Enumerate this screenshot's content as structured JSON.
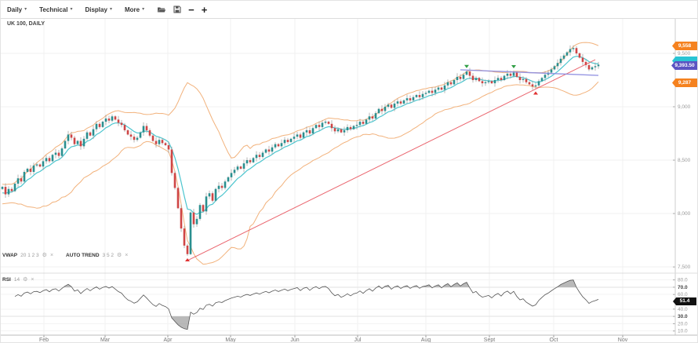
{
  "icons": {
    "caret": "▾",
    "gear": "⚙",
    "close": "×",
    "minus": "−",
    "plus": "+"
  },
  "toolbar": {
    "menus": [
      {
        "label": "Daily"
      },
      {
        "label": "Technical"
      },
      {
        "label": "Display"
      },
      {
        "label": "More"
      }
    ]
  },
  "symbol_label": "UK 100, DAILY",
  "indicators": {
    "vwap": {
      "name": "VWAP",
      "params": "20 1 2 3"
    },
    "auto_trend": {
      "name": "AUTO TREND",
      "params": "3 5 2"
    },
    "rsi": {
      "name": "RSI",
      "params": "14"
    }
  },
  "badges": {
    "upper_band": {
      "text": "9,558",
      "color": "#f5821f"
    },
    "ma": {
      "text": "",
      "color": "#29c4d4"
    },
    "price": {
      "text": "9,393.50",
      "color": "#5b54c2"
    },
    "lower_band": {
      "text": "9,287",
      "color": "#f5821f"
    },
    "rsi": {
      "text": "51.4",
      "color": "#111111"
    }
  },
  "chart_data": {
    "type": "candlestick",
    "symbol": "UK 100",
    "timeframe": "DAILY",
    "x_axis_months": [
      "Feb",
      "Mar",
      "Apr",
      "May",
      "Jun",
      "Jul",
      "Aug",
      "Sept",
      "Oct",
      "Nov"
    ],
    "price_ticks": [
      9500,
      9000,
      8500,
      8000,
      7500
    ],
    "rsi_ticks": [
      80,
      70,
      60,
      40,
      30,
      20,
      10
    ],
    "rsi_bold_ticks": [
      70,
      30
    ],
    "rsi_last_value": 51.4,
    "open_first": 8230,
    "pre_window_closes": [
      8150,
      8230,
      8180,
      8100,
      8200,
      8170,
      8120,
      8240,
      8210,
      8160
    ],
    "closes": [
      8250,
      8180,
      8230,
      8210,
      8280,
      8330,
      8300,
      8390,
      8420,
      8390,
      8450,
      8460,
      8440,
      8490,
      8520,
      8490,
      8550,
      8570,
      8540,
      8610,
      8680,
      8740,
      8710,
      8650,
      8680,
      8630,
      8700,
      8760,
      8730,
      8790,
      8840,
      8810,
      8860,
      8890,
      8870,
      8910,
      8880,
      8850,
      8830,
      8780,
      8740,
      8720,
      8690,
      8710,
      8760,
      8820,
      8780,
      8730,
      8680,
      8650,
      8690,
      8660,
      8640,
      8600,
      8380,
      8240,
      8050,
      7860,
      7700,
      7620,
      8010,
      7900,
      7950,
      8080,
      8020,
      8160,
      8190,
      8120,
      8230,
      8260,
      8240,
      8300,
      8340,
      8380,
      8410,
      8440,
      8420,
      8470,
      8500,
      8480,
      8520,
      8550,
      8530,
      8570,
      8600,
      8580,
      8620,
      8650,
      8630,
      8660,
      8690,
      8670,
      8700,
      8720,
      8740,
      8710,
      8760,
      8780,
      8750,
      8800,
      8830,
      8810,
      8850,
      8860,
      8840,
      8800,
      8770,
      8790,
      8760,
      8780,
      8810,
      8790,
      8820,
      8830,
      8860,
      8840,
      8880,
      8910,
      8890,
      8940,
      8980,
      8960,
      9000,
      9020,
      8990,
      9030,
      9050,
      9030,
      9060,
      9080,
      9060,
      9090,
      9110,
      9090,
      9120,
      9130,
      9150,
      9130,
      9160,
      9180,
      9160,
      9200,
      9230,
      9210,
      9250,
      9280,
      9260,
      9300,
      9330,
      9290,
      9250,
      9270,
      9240,
      9220,
      9230,
      9240,
      9220,
      9250,
      9270,
      9250,
      9290,
      9310,
      9290,
      9320,
      9280,
      9250,
      9260,
      9230,
      9210,
      9190,
      9200,
      9240,
      9270,
      9300,
      9320,
      9350,
      9380,
      9410,
      9450,
      9480,
      9510,
      9540,
      9550,
      9500,
      9460,
      9420,
      9390,
      9350,
      9370,
      9380,
      9394
    ],
    "overlays": {
      "bollinger": {
        "period": 20,
        "stdev_mult": 2,
        "color": "#f2b27c",
        "upper_value_label": "9,558",
        "lower_value_label": "9,287"
      },
      "vwap_line": {
        "period": 8,
        "color": "#4cc5ce"
      },
      "trend_lines": [
        {
          "name": "auto-trend-support",
          "color": "#e8555f",
          "x1_index": 59,
          "price1": 7560,
          "x2_index": 189,
          "price2": 9441,
          "width": 1
        },
        {
          "name": "auto-trend-resistance",
          "color": "#8c8ce0",
          "x1_index": 146,
          "price1": 9346,
          "x2_index": 190,
          "price2": 9294,
          "width": 1.4
        }
      ]
    },
    "markers": [
      {
        "index": 59,
        "direction": "up",
        "color": "#e03131"
      },
      {
        "index": 148,
        "direction": "down",
        "color": "#2f9e44"
      },
      {
        "index": 163,
        "direction": "down",
        "color": "#2f9e44"
      },
      {
        "index": 170,
        "direction": "up",
        "color": "#e03131"
      }
    ],
    "current_price_label": "9,393.50",
    "candle_up_color": "#2a8f8f",
    "candle_down_color": "#cf4545",
    "wick_color": "#999999",
    "rsi_line_color": "#555555",
    "rsi_zone_fill": "#8a8a8a"
  }
}
